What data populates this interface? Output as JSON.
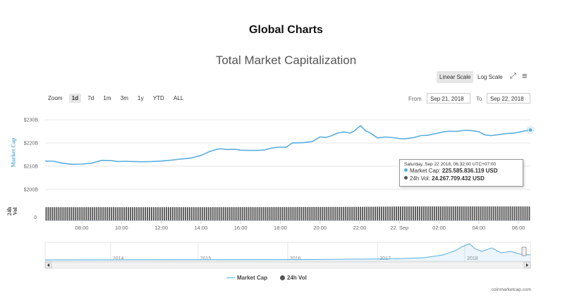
{
  "heading": "Global Charts",
  "chart_title": "Total Market Capitalization",
  "scale_buttons": {
    "linear": "Linear Scale",
    "log": "Log Scale"
  },
  "zoom": {
    "label": "Zoom",
    "options": [
      "1d",
      "7d",
      "1m",
      "3m",
      "1y",
      "YTD",
      "ALL"
    ],
    "selected": "1d"
  },
  "range": {
    "from_label": "From",
    "from_value": "Sep 21, 2018",
    "to_label": "To",
    "to_value": "Sep 22, 2018"
  },
  "tooltip": {
    "date": "Saturday, Sep 22 2018, 06:32:00 UTC+07:00",
    "market_cap_label": "Market Cap:",
    "market_cap_value": "225.585.836.119 USD",
    "vol_label": "24h Vol:",
    "vol_value": "24.267.709.432 USD"
  },
  "legend": {
    "market_cap": "Market Cap",
    "vol": "24h Vol"
  },
  "credits": "coinmarketcap.com",
  "colors": {
    "market_cap": "#5aaee0",
    "vol": "#555555",
    "navigator_line": "#5aaee0"
  },
  "chart_data": {
    "type": "line",
    "yaxis_title": "Market Cap",
    "vol_axis_title": "24h Vol",
    "y_ticks": [
      "$200B",
      "$210B",
      "$220B",
      "$230B"
    ],
    "y_tick_values": [
      200,
      210,
      220,
      230
    ],
    "ylim": [
      196,
      234
    ],
    "vol_ticks": [
      "0"
    ],
    "x_ticks": [
      "08:00",
      "10:00",
      "12:00",
      "14:00",
      "16:00",
      "18:00",
      "20:00",
      "22:00",
      "22. Sep",
      "02:00",
      "04:00",
      "06:00"
    ],
    "x_tick_hours": [
      8,
      10,
      12,
      14,
      16,
      18,
      20,
      22,
      24,
      26,
      28,
      30
    ],
    "x_range_hours": [
      6.15,
      30.6
    ],
    "grid": true,
    "series": [
      {
        "name": "Market Cap",
        "unit": "billion USD",
        "x_hours": [
          6.15,
          6.6,
          7.0,
          7.5,
          8.0,
          8.5,
          9.0,
          9.5,
          9.8,
          10.2,
          10.6,
          11.0,
          11.5,
          12.0,
          12.5,
          13.0,
          13.5,
          14.0,
          14.4,
          14.8,
          15.0,
          15.3,
          15.7,
          16.0,
          16.4,
          16.9,
          17.2,
          17.6,
          17.9,
          18.3,
          18.6,
          19.1,
          19.6,
          20.0,
          20.3,
          20.6,
          20.9,
          21.2,
          21.5,
          21.7,
          21.9,
          22.05,
          22.3,
          22.5,
          22.9,
          23.3,
          23.7,
          24.0,
          24.3,
          24.7,
          25.1,
          25.4,
          25.8,
          26.2,
          26.5,
          26.9,
          27.3,
          27.6,
          28.0,
          28.3,
          28.6,
          29.0,
          29.4,
          29.8,
          30.1,
          30.3,
          30.6
        ],
        "values": [
          212.2,
          212.1,
          211.3,
          210.8,
          210.9,
          211.3,
          212.5,
          212.4,
          212.0,
          212.1,
          212.0,
          211.9,
          212.0,
          212.2,
          212.6,
          213.1,
          213.5,
          214.6,
          216.2,
          217.3,
          217.5,
          217.2,
          217.3,
          216.9,
          216.8,
          216.8,
          217.0,
          217.9,
          218.2,
          218.2,
          220.0,
          220.1,
          220.6,
          222.6,
          222.4,
          223.2,
          224.3,
          224.8,
          224.3,
          225.0,
          226.5,
          227.5,
          225.2,
          224.5,
          222.2,
          222.6,
          222.3,
          221.9,
          221.8,
          222.3,
          223.2,
          223.3,
          224.0,
          224.8,
          225.1,
          225.0,
          225.5,
          225.4,
          224.9,
          223.5,
          223.2,
          223.6,
          224.1,
          224.3,
          224.8,
          225.2,
          225.6
        ]
      },
      {
        "name": "24h Vol",
        "unit": "billion USD",
        "x_hours": [
          6.15,
          10.0,
          14.0,
          18.0,
          22.0,
          24.0,
          26.0,
          30.6
        ],
        "values": [
          23.0,
          23.0,
          23.0,
          23.1,
          23.6,
          24.2,
          24.3,
          24.27
        ]
      }
    ],
    "navigator": {
      "x_labels": [
        "2014",
        "2015",
        "2016",
        "2017",
        "2018"
      ],
      "label_fractions": [
        0.135,
        0.315,
        0.5,
        0.685,
        0.865
      ]
    }
  }
}
